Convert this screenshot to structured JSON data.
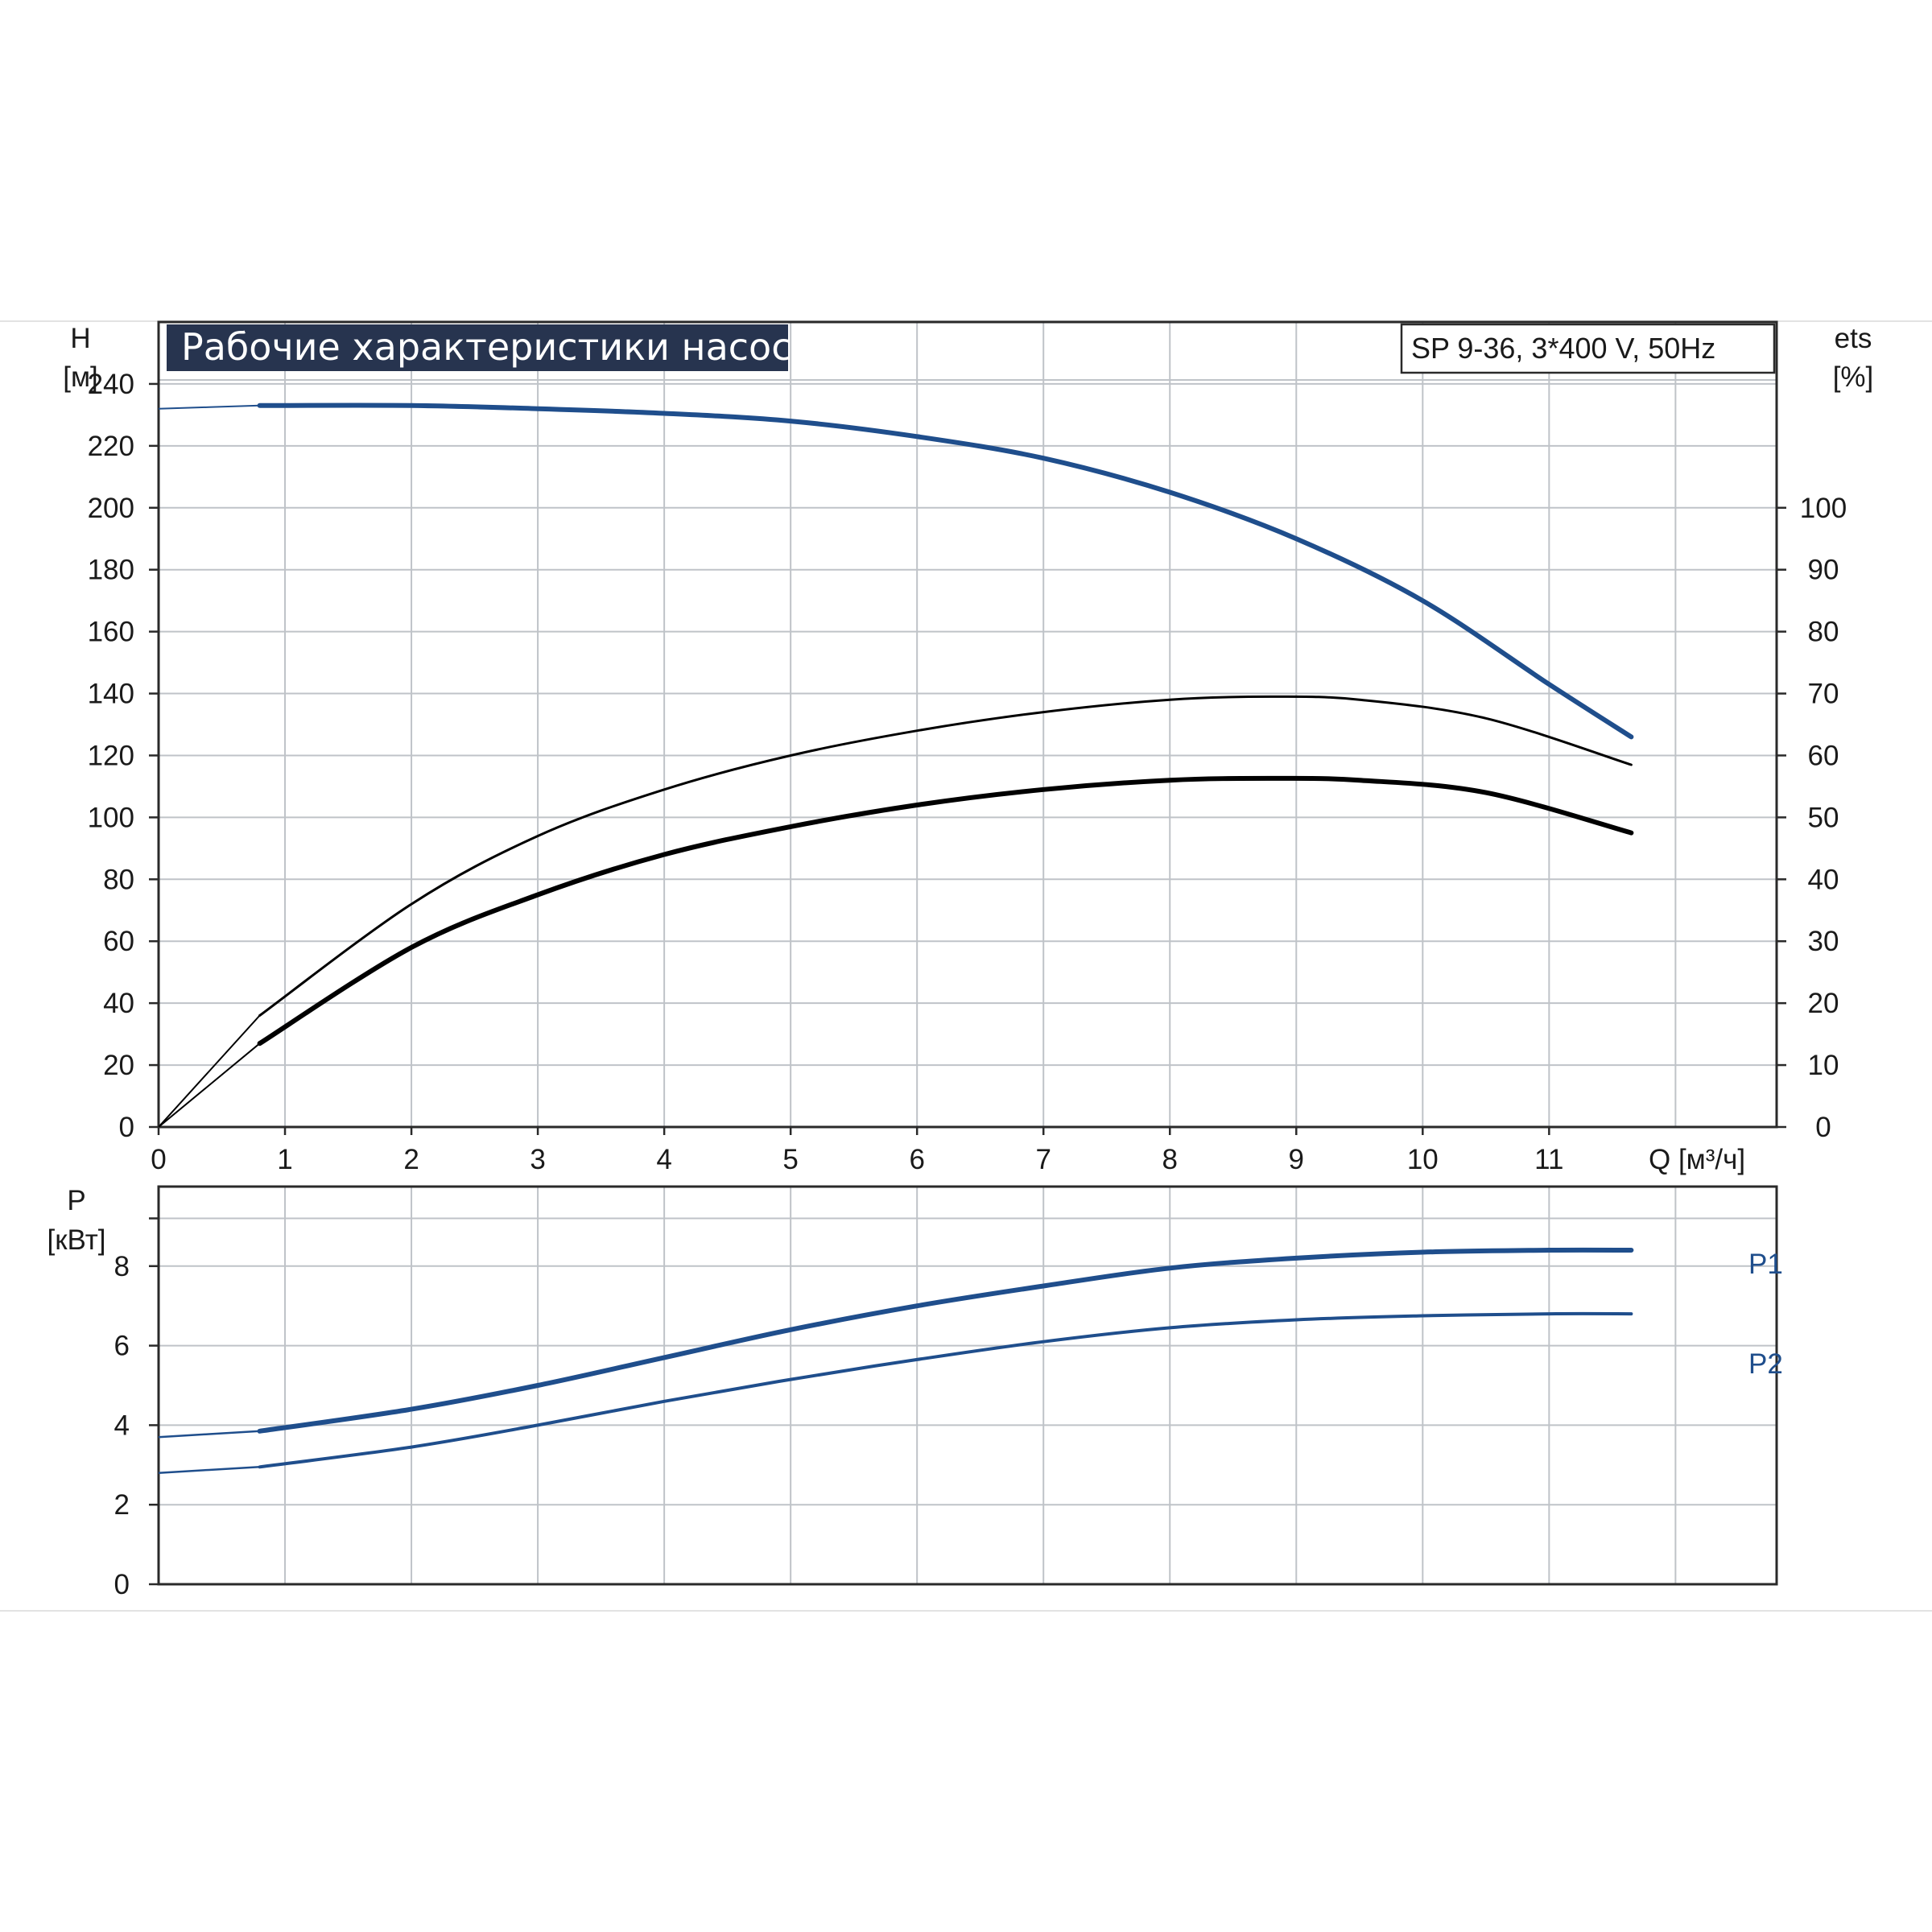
{
  "chart_data": [
    {
      "type": "line",
      "title": "Рабочие характеристики насоса",
      "model_label": "SP 9-36, 3*400 V, 50Hz",
      "y_left_label": [
        "H",
        "[м]"
      ],
      "y_right_label": [
        "ets",
        "[%]"
      ],
      "x_label": "Q [м³/ч]",
      "x_ticks": [
        "0",
        "1",
        "2",
        "3",
        "4",
        "5",
        "6",
        "7",
        "8",
        "9",
        "10",
        "11"
      ],
      "xlim": [
        0,
        12.8
      ],
      "y_left_ticks": [
        "0",
        "20",
        "40",
        "60",
        "80",
        "100",
        "120",
        "140",
        "160",
        "180",
        "200",
        "220",
        "240"
      ],
      "ylim_left": [
        0,
        260
      ],
      "y_right_ticks": [
        "0",
        "10",
        "20",
        "30",
        "40",
        "50",
        "60",
        "70",
        "80",
        "90",
        "100"
      ],
      "ylim_right": [
        0,
        130
      ],
      "grid": true,
      "colors": {
        "head": "#1f4e8c",
        "efficiency": "#000000"
      },
      "series": [
        {
          "axis": "left",
          "x": [
            0,
            0.8,
            2,
            3,
            4,
            5,
            6,
            7,
            8,
            9,
            10,
            11,
            11.65
          ],
          "y": [
            232,
            233,
            233,
            232,
            230.5,
            228,
            223,
            216,
            205,
            190,
            170,
            143,
            126
          ]
        },
        {
          "axis": "right",
          "x": [
            0,
            0.8,
            2,
            3,
            4,
            5,
            6,
            7,
            8,
            8.8,
            9.5,
            10.5,
            11.65
          ],
          "y": [
            0,
            18,
            36,
            47,
            54.5,
            60,
            64,
            67,
            69,
            69.5,
            69,
            66,
            58.5
          ]
        },
        {
          "axis": "right",
          "x": [
            0,
            0.8,
            2,
            3,
            4,
            5,
            6,
            7,
            8,
            8.8,
            9.5,
            10.5,
            11.65
          ],
          "y": [
            0,
            13.5,
            29,
            37.5,
            44,
            48.5,
            52,
            54.5,
            56,
            56.3,
            56,
            54,
            47.5
          ]
        }
      ]
    },
    {
      "type": "line",
      "y_label": [
        "P",
        "[кВт]"
      ],
      "ylim": [
        0,
        10
      ],
      "y_ticks": [
        "0",
        "2",
        "4",
        "6",
        "8"
      ],
      "xlim": [
        0,
        12.8
      ],
      "grid": true,
      "colors": {
        "power": "#1f4e8c"
      },
      "series": [
        {
          "name": "P1",
          "x": [
            0,
            0.8,
            2,
            3,
            4,
            5,
            6,
            7,
            8,
            9,
            10,
            11,
            11.65
          ],
          "y": [
            3.7,
            3.85,
            4.4,
            5.0,
            5.7,
            6.4,
            7.0,
            7.5,
            7.95,
            8.2,
            8.35,
            8.4,
            8.4
          ]
        },
        {
          "name": "P2",
          "x": [
            0,
            0.8,
            2,
            3,
            4,
            5,
            6,
            7,
            8,
            9,
            10,
            11,
            11.65
          ],
          "y": [
            2.8,
            2.95,
            3.45,
            4.0,
            4.6,
            5.15,
            5.65,
            6.1,
            6.45,
            6.65,
            6.75,
            6.8,
            6.8
          ]
        }
      ]
    }
  ]
}
